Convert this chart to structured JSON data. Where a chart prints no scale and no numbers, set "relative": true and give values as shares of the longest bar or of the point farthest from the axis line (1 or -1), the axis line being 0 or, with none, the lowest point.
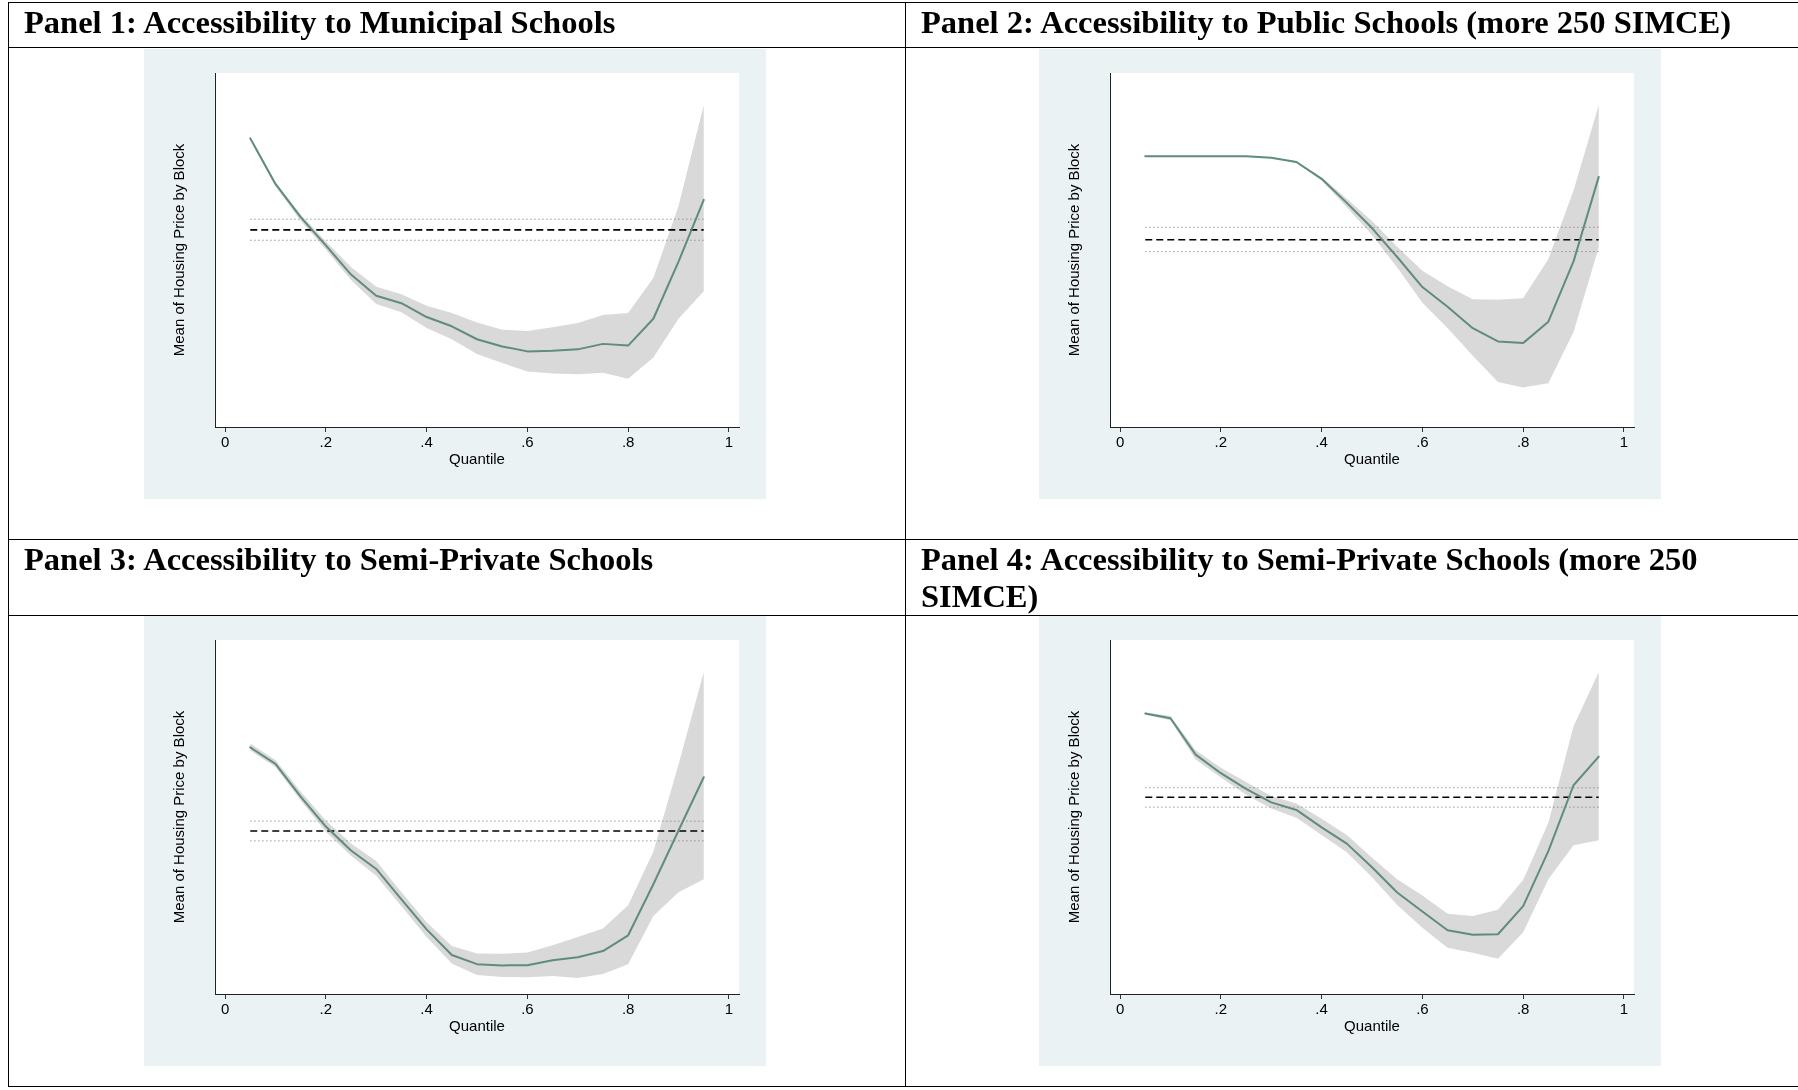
{
  "chart_data": [
    {
      "type": "line",
      "title": "Panel 1: Accessibility to Municipal Schools",
      "xlabel": "Quantile",
      "ylabel": "Mean of Housing Price by Block",
      "relative": true,
      "x": [
        0.05,
        0.1,
        0.15,
        0.2,
        0.25,
        0.3,
        0.35,
        0.4,
        0.45,
        0.5,
        0.55,
        0.6,
        0.65,
        0.7,
        0.75,
        0.8,
        0.85,
        0.9,
        0.95
      ],
      "series": [
        {
          "color": "#5f8c7c",
          "values": [
            1,
            0.842,
            0.727,
            0.629,
            0.528,
            0.455,
            0.429,
            0.381,
            0.349,
            0.304,
            0.279,
            0.262,
            0.264,
            0.269,
            0.288,
            0.282,
            0.375,
            0.573,
            0.787
          ],
          "upper": [
            1.004,
            0.848,
            0.736,
            0.643,
            0.554,
            0.486,
            0.46,
            0.42,
            0.395,
            0.362,
            0.337,
            0.333,
            0.346,
            0.36,
            0.388,
            0.395,
            0.516,
            0.766,
            1.115
          ],
          "lower": [
            0.994,
            0.833,
            0.715,
            0.615,
            0.509,
            0.426,
            0.398,
            0.343,
            0.304,
            0.253,
            0.222,
            0.192,
            0.185,
            0.183,
            0.188,
            0.167,
            0.241,
            0.375,
            0.47
          ]
        }
      ],
      "ref_lines": [
        {
          "axis": "y",
          "value": 0.683,
          "color": "#000000",
          "line_style": "dashed"
        },
        {
          "axis": "y",
          "value": 0.72,
          "color": "#7f7f7f",
          "line_style": "dotted"
        },
        {
          "axis": "y",
          "value": 0.647,
          "color": "#7f7f7f",
          "line_style": "dotted"
        }
      ],
      "xlim": [
        -0.02,
        1.02
      ],
      "xticks": [
        {
          "value": 0,
          "label": "0"
        },
        {
          "value": 0.2,
          "label": ".2"
        },
        {
          "value": 0.4,
          "label": ".4"
        },
        {
          "value": 0.6,
          "label": ".6"
        },
        {
          "value": 0.8,
          "label": ".8"
        },
        {
          "value": 1,
          "label": "1"
        }
      ]
    },
    {
      "type": "line",
      "title": "Panel 2: Accessibility to Public Schools (more 250 SIMCE)",
      "xlabel": "Quantile",
      "ylabel": "Mean of Housing Price by Block",
      "relative": true,
      "x": [
        0.05,
        0.1,
        0.15,
        0.2,
        0.25,
        0.3,
        0.35,
        0.4,
        0.45,
        0.5,
        0.55,
        0.6,
        0.65,
        0.7,
        0.75,
        0.8,
        0.85,
        0.9,
        0.95
      ],
      "series": [
        {
          "color": "#5f8c7c",
          "values": [
            1,
            1,
            1,
            1,
            1,
            0.995,
            0.979,
            0.917,
            0.828,
            0.735,
            0.628,
            0.517,
            0.444,
            0.365,
            0.316,
            0.31,
            0.389,
            0.612,
            0.924
          ],
          "upper": [
            1,
            1,
            1,
            1,
            1,
            0.996,
            0.981,
            0.923,
            0.843,
            0.761,
            0.666,
            0.577,
            0.52,
            0.472,
            0.47,
            0.476,
            0.62,
            0.874,
            1.189
          ],
          "lower": [
            1,
            1,
            1,
            1,
            1,
            0.994,
            0.975,
            0.911,
            0.812,
            0.709,
            0.589,
            0.459,
            0.366,
            0.263,
            0.166,
            0.146,
            0.162,
            0.351,
            0.663
          ]
        }
      ],
      "ref_lines": [
        {
          "axis": "y",
          "value": 0.692,
          "color": "#000000",
          "line_style": "dashed"
        },
        {
          "axis": "y",
          "value": 0.738,
          "color": "#7f7f7f",
          "line_style": "dotted"
        },
        {
          "axis": "y",
          "value": 0.648,
          "color": "#7f7f7f",
          "line_style": "dotted"
        }
      ],
      "xlim": [
        -0.02,
        1.02
      ],
      "xticks": [
        {
          "value": 0,
          "label": "0"
        },
        {
          "value": 0.2,
          "label": ".2"
        },
        {
          "value": 0.4,
          "label": ".4"
        },
        {
          "value": 0.6,
          "label": ".6"
        },
        {
          "value": 0.8,
          "label": ".8"
        },
        {
          "value": 1,
          "label": "1"
        }
      ]
    },
    {
      "type": "line",
      "title": "Panel 3: Accessibility to Semi-Private Schools",
      "xlabel": "Quantile",
      "ylabel": "Mean of Housing Price by Block",
      "relative": true,
      "x": [
        0.05,
        0.1,
        0.15,
        0.2,
        0.25,
        0.3,
        0.35,
        0.4,
        0.45,
        0.5,
        0.55,
        0.6,
        0.65,
        0.7,
        0.75,
        0.8,
        0.85,
        0.9,
        0.95
      ],
      "series": [
        {
          "color": "#5f8c7c",
          "values": [
            1,
            0.933,
            0.8,
            0.679,
            0.582,
            0.507,
            0.384,
            0.262,
            0.158,
            0.121,
            0.116,
            0.117,
            0.137,
            0.149,
            0.174,
            0.238,
            0.445,
            0.663,
            0.879
          ],
          "upper": [
            1.016,
            0.949,
            0.821,
            0.704,
            0.61,
            0.539,
            0.413,
            0.291,
            0.195,
            0.164,
            0.163,
            0.168,
            0.198,
            0.231,
            0.266,
            0.36,
            0.577,
            0.931,
            1.305
          ],
          "lower": [
            0.987,
            0.92,
            0.785,
            0.658,
            0.561,
            0.48,
            0.356,
            0.231,
            0.124,
            0.077,
            0.069,
            0.068,
            0.073,
            0.065,
            0.081,
            0.121,
            0.316,
            0.413,
            0.465
          ]
        }
      ],
      "ref_lines": [
        {
          "axis": "y",
          "value": 0.661,
          "color": "#000000",
          "line_style": "dashed"
        },
        {
          "axis": "y",
          "value": 0.701,
          "color": "#7f7f7f",
          "line_style": "dotted"
        },
        {
          "axis": "y",
          "value": 0.621,
          "color": "#7f7f7f",
          "line_style": "dotted"
        }
      ],
      "xlim": [
        -0.02,
        1.02
      ],
      "xticks": [
        {
          "value": 0,
          "label": "0"
        },
        {
          "value": 0.2,
          "label": ".2"
        },
        {
          "value": 0.4,
          "label": ".4"
        },
        {
          "value": 0.6,
          "label": ".6"
        },
        {
          "value": 0.8,
          "label": ".8"
        },
        {
          "value": 1,
          "label": "1"
        }
      ]
    },
    {
      "type": "line",
      "title": "Panel 4: Accessibility to Semi-Private Schools (more 250 SIMCE)",
      "xlabel": "Quantile",
      "ylabel": "Mean of Housing Price by Block",
      "relative": true,
      "x": [
        0.05,
        0.1,
        0.15,
        0.2,
        0.25,
        0.3,
        0.35,
        0.4,
        0.45,
        0.5,
        0.55,
        0.6,
        0.65,
        0.7,
        0.75,
        0.8,
        0.85,
        0.9,
        0.95
      ],
      "series": [
        {
          "color": "#5f8c7c",
          "values": [
            1,
            0.983,
            0.853,
            0.787,
            0.731,
            0.683,
            0.656,
            0.594,
            0.536,
            0.452,
            0.362,
            0.294,
            0.227,
            0.211,
            0.213,
            0.313,
            0.509,
            0.744,
            0.846
          ],
          "upper": [
            1.003,
            0.991,
            0.869,
            0.806,
            0.756,
            0.706,
            0.679,
            0.625,
            0.567,
            0.486,
            0.409,
            0.351,
            0.286,
            0.278,
            0.3,
            0.406,
            0.61,
            0.954,
            1.147
          ],
          "lower": [
            0.995,
            0.976,
            0.836,
            0.772,
            0.71,
            0.661,
            0.628,
            0.567,
            0.505,
            0.416,
            0.317,
            0.236,
            0.165,
            0.147,
            0.126,
            0.22,
            0.409,
            0.53,
            0.548
          ]
        }
      ],
      "ref_lines": [
        {
          "axis": "y",
          "value": 0.701,
          "color": "#000000",
          "line_style": "dashed"
        },
        {
          "axis": "y",
          "value": 0.735,
          "color": "#7f7f7f",
          "line_style": "dotted"
        },
        {
          "axis": "y",
          "value": 0.666,
          "color": "#7f7f7f",
          "line_style": "dotted"
        }
      ],
      "xlim": [
        -0.02,
        1.02
      ],
      "xticks": [
        {
          "value": 0,
          "label": "0"
        },
        {
          "value": 0.2,
          "label": ".2"
        },
        {
          "value": 0.4,
          "label": ".4"
        },
        {
          "value": 0.6,
          "label": ".6"
        },
        {
          "value": 0.8,
          "label": ".8"
        },
        {
          "value": 1,
          "label": "1"
        }
      ]
    }
  ]
}
